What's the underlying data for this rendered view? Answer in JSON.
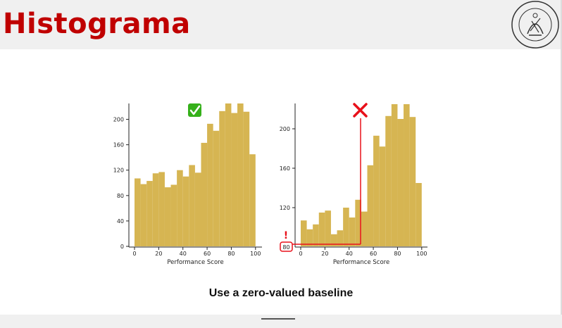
{
  "slide": {
    "title": "Histograma",
    "caption": "Use a zero-valued baseline",
    "seal_text": "UNIVERSIDAD DE BUENOS AIRES · FACULTAD DE INGENIERIA"
  },
  "colors": {
    "bar": "#d6b552",
    "title": "#c00000",
    "alert": "#e8101a",
    "good": "#35b01a"
  },
  "chart_data": [
    {
      "type": "bar",
      "xlabel": "Performance Score",
      "ylabel": "",
      "bin_start": 0,
      "bin_width": 5,
      "xlim": [
        -5,
        105
      ],
      "ylim": [
        0,
        225
      ],
      "xticks": [
        0,
        20,
        40,
        60,
        80,
        100
      ],
      "yticks": [
        0,
        40,
        80,
        120,
        160,
        200
      ],
      "values": [
        107,
        98,
        103,
        115,
        117,
        93,
        97,
        120,
        110,
        128,
        116,
        163,
        193,
        182,
        213,
        225,
        210,
        225,
        212,
        145
      ],
      "annotation": "check-mark"
    },
    {
      "type": "bar",
      "xlabel": "Performance Score",
      "ylabel": "",
      "bin_start": 0,
      "bin_width": 5,
      "xlim": [
        -5,
        105
      ],
      "ylim": [
        80,
        225
      ],
      "xticks": [
        0,
        20,
        40,
        60,
        80,
        100
      ],
      "yticks": [
        120,
        160,
        200
      ],
      "highlighted_tick": "80",
      "warning_mark": "!",
      "values": [
        107,
        98,
        103,
        115,
        117,
        93,
        97,
        120,
        110,
        128,
        116,
        163,
        193,
        182,
        213,
        225,
        210,
        225,
        212,
        145
      ],
      "annotation": "cross-mark"
    }
  ]
}
